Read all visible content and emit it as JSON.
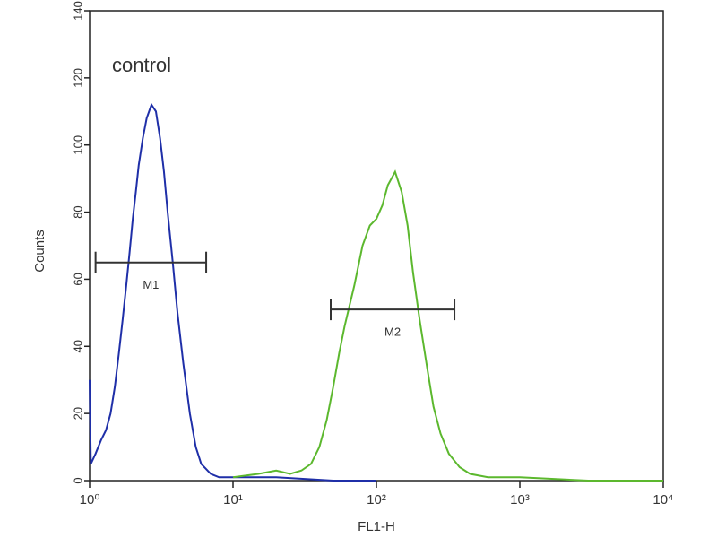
{
  "chart_data": {
    "type": "line",
    "annotation": "control",
    "xlabel": "FL1-H",
    "ylabel": "Counts",
    "xscale": "log",
    "xlim": [
      1,
      10000
    ],
    "xticks": [
      {
        "value": 1,
        "label": "10⁰"
      },
      {
        "value": 10,
        "label": "10¹"
      },
      {
        "value": 100,
        "label": "10²"
      },
      {
        "value": 1000,
        "label": "10³"
      },
      {
        "value": 10000,
        "label": "10⁴"
      }
    ],
    "ylim": [
      0,
      140
    ],
    "yticks": [
      0,
      20,
      40,
      60,
      80,
      100,
      120,
      140
    ],
    "series": [
      {
        "color": "#1f2fa8",
        "x": [
          1.0,
          1.02,
          1.1,
          1.2,
          1.3,
          1.4,
          1.5,
          1.6,
          1.7,
          1.8,
          1.9,
          2.0,
          2.1,
          2.2,
          2.35,
          2.5,
          2.7,
          2.9,
          3.1,
          3.3,
          3.5,
          3.8,
          4.1,
          4.5,
          5.0,
          5.5,
          6.0,
          7.0,
          8.0,
          10,
          20,
          50,
          100
        ],
        "values": [
          30,
          5,
          8,
          12,
          15,
          20,
          28,
          38,
          48,
          58,
          68,
          78,
          86,
          94,
          102,
          108,
          112,
          110,
          102,
          92,
          80,
          65,
          50,
          35,
          20,
          10,
          5,
          2,
          1,
          1,
          1,
          0,
          0
        ]
      },
      {
        "color": "#5cb82e",
        "x": [
          10,
          15,
          20,
          25,
          30,
          35,
          40,
          45,
          50,
          55,
          60,
          70,
          80,
          90,
          100,
          110,
          120,
          135,
          150,
          165,
          180,
          200,
          225,
          250,
          280,
          320,
          380,
          450,
          600,
          1000,
          3000,
          10000
        ],
        "values": [
          1,
          2,
          3,
          2,
          3,
          5,
          10,
          18,
          28,
          38,
          46,
          58,
          70,
          76,
          78,
          82,
          88,
          92,
          86,
          76,
          62,
          48,
          34,
          22,
          14,
          8,
          4,
          2,
          1,
          1,
          0,
          0
        ]
      }
    ],
    "markers": [
      {
        "label": "M1",
        "range": [
          1.1,
          6.5
        ],
        "y": 65
      },
      {
        "label": "M2",
        "range": [
          48,
          350
        ],
        "y": 51
      }
    ]
  }
}
